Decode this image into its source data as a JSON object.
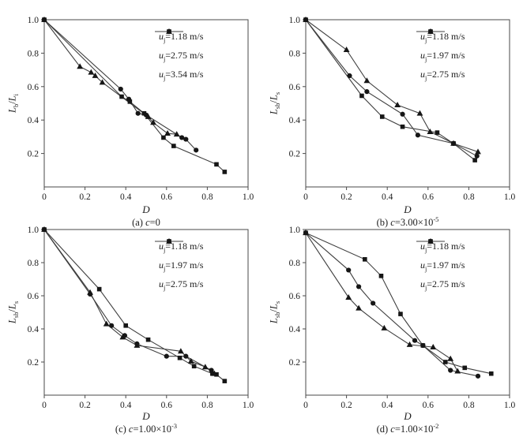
{
  "figure": {
    "background": "#ffffff",
    "line_color": "#3f3f3f",
    "marker_color": "#161616",
    "axis_color": "#4a4a4a",
    "text_color": "#1c1c1c"
  },
  "chart_data": [
    {
      "id": "a",
      "type": "line",
      "title": "(a) c=0",
      "xlabel": "D",
      "ylabel": "L_b/L_i",
      "xlim": [
        0,
        1.0
      ],
      "ylim": [
        0,
        1.0
      ],
      "x_ticks": [
        0,
        0.2,
        0.4,
        0.6,
        0.8,
        1.0
      ],
      "y_ticks": [
        0.2,
        0.4,
        0.6,
        0.8,
        1.0
      ],
      "grid": false,
      "legend_position": "upper right",
      "series": [
        {
          "name": "u_j=1.18 m/s",
          "marker": "square",
          "points": [
            [
              0,
              1.0
            ],
            [
              0.38,
              0.54
            ],
            [
              0.42,
              0.51
            ],
            [
              0.49,
              0.44
            ],
            [
              0.585,
              0.295
            ],
            [
              0.635,
              0.245
            ],
            [
              0.845,
              0.135
            ],
            [
              0.885,
              0.09
            ]
          ]
        },
        {
          "name": "u_j=2.75 m/s",
          "marker": "circle",
          "points": [
            [
              0,
              1.0
            ],
            [
              0.375,
              0.585
            ],
            [
              0.415,
              0.525
            ],
            [
              0.46,
              0.44
            ],
            [
              0.5,
              0.43
            ],
            [
              0.675,
              0.295
            ],
            [
              0.695,
              0.285
            ],
            [
              0.745,
              0.22
            ]
          ]
        },
        {
          "name": "u_j=3.54 m/s",
          "marker": "triangle",
          "points": [
            [
              0,
              1.0
            ],
            [
              0.175,
              0.72
            ],
            [
              0.23,
              0.685
            ],
            [
              0.25,
              0.665
            ],
            [
              0.285,
              0.625
            ],
            [
              0.51,
              0.42
            ],
            [
              0.535,
              0.385
            ],
            [
              0.605,
              0.32
            ],
            [
              0.65,
              0.315
            ]
          ]
        }
      ]
    },
    {
      "id": "b",
      "type": "line",
      "title": "(b) c=3.00×10^-5",
      "xlabel": "D",
      "ylabel": "L_sb/L_s",
      "xlim": [
        0,
        1.0
      ],
      "ylim": [
        0,
        1.0
      ],
      "x_ticks": [
        0,
        0.2,
        0.4,
        0.6,
        0.8,
        1.0
      ],
      "y_ticks": [
        0.2,
        0.4,
        0.6,
        0.8,
        1.0
      ],
      "grid": false,
      "legend_position": "upper right",
      "series": [
        {
          "name": "u_j=1.18 m/s",
          "marker": "square",
          "points": [
            [
              0,
              1.0
            ],
            [
              0.275,
              0.545
            ],
            [
              0.375,
              0.42
            ],
            [
              0.475,
              0.36
            ],
            [
              0.645,
              0.325
            ],
            [
              0.725,
              0.26
            ],
            [
              0.83,
              0.16
            ]
          ]
        },
        {
          "name": "u_j=1.97 m/s",
          "marker": "circle",
          "points": [
            [
              0,
              1.0
            ],
            [
              0.215,
              0.665
            ],
            [
              0.3,
              0.57
            ],
            [
              0.475,
              0.435
            ],
            [
              0.55,
              0.31
            ],
            [
              0.725,
              0.26
            ],
            [
              0.84,
              0.185
            ]
          ]
        },
        {
          "name": "u_j=2.75 m/s",
          "marker": "triangle",
          "points": [
            [
              0,
              1.0
            ],
            [
              0.2,
              0.82
            ],
            [
              0.3,
              0.635
            ],
            [
              0.45,
              0.49
            ],
            [
              0.56,
              0.44
            ],
            [
              0.61,
              0.33
            ],
            [
              0.725,
              0.26
            ],
            [
              0.845,
              0.21
            ]
          ]
        }
      ]
    },
    {
      "id": "c",
      "type": "line",
      "title": "(c) c=1.00×10^-3",
      "xlabel": "D",
      "ylabel": "L_sb/L_s",
      "xlim": [
        0,
        1.0
      ],
      "ylim": [
        0,
        1.0
      ],
      "x_ticks": [
        0,
        0.2,
        0.4,
        0.6,
        0.8,
        1.0
      ],
      "y_ticks": [
        0.2,
        0.4,
        0.6,
        0.8,
        1.0
      ],
      "grid": false,
      "legend_position": "upper right",
      "series": [
        {
          "name": "u_j=1.18 m/s",
          "marker": "square",
          "points": [
            [
              0,
              1.0
            ],
            [
              0.27,
              0.64
            ],
            [
              0.4,
              0.42
            ],
            [
              0.51,
              0.335
            ],
            [
              0.665,
              0.225
            ],
            [
              0.735,
              0.175
            ],
            [
              0.825,
              0.13
            ],
            [
              0.845,
              0.125
            ],
            [
              0.885,
              0.085
            ]
          ]
        },
        {
          "name": "u_j=1.97 m/s",
          "marker": "circle",
          "points": [
            [
              0,
              1.0
            ],
            [
              0.225,
              0.61
            ],
            [
              0.33,
              0.42
            ],
            [
              0.395,
              0.36
            ],
            [
              0.455,
              0.31
            ],
            [
              0.6,
              0.235
            ],
            [
              0.695,
              0.235
            ],
            [
              0.82,
              0.15
            ]
          ]
        },
        {
          "name": "u_j=2.75 m/s",
          "marker": "triangle",
          "points": [
            [
              0,
              1.0
            ],
            [
              0.225,
              0.62
            ],
            [
              0.305,
              0.43
            ],
            [
              0.385,
              0.35
            ],
            [
              0.455,
              0.3
            ],
            [
              0.67,
              0.265
            ],
            [
              0.72,
              0.205
            ],
            [
              0.79,
              0.17
            ],
            [
              0.835,
              0.13
            ]
          ]
        }
      ]
    },
    {
      "id": "d",
      "type": "line",
      "title": "(d) c=1.00×10^-2",
      "xlabel": "D",
      "ylabel": "L_sb/L_s",
      "xlim": [
        0,
        1.0
      ],
      "ylim": [
        0,
        1.0
      ],
      "x_ticks": [
        0,
        0.2,
        0.4,
        0.6,
        0.8,
        1.0
      ],
      "y_ticks": [
        0.2,
        0.4,
        0.6,
        0.8,
        1.0
      ],
      "grid": false,
      "legend_position": "upper right",
      "series": [
        {
          "name": "u_j=1.18 m/s",
          "marker": "square",
          "points": [
            [
              0,
              0.98
            ],
            [
              0.29,
              0.82
            ],
            [
              0.37,
              0.72
            ],
            [
              0.465,
              0.49
            ],
            [
              0.575,
              0.3
            ],
            [
              0.685,
              0.2
            ],
            [
              0.78,
              0.165
            ],
            [
              0.91,
              0.13
            ]
          ]
        },
        {
          "name": "u_j=1.97 m/s",
          "marker": "circle",
          "points": [
            [
              0,
              0.98
            ],
            [
              0.21,
              0.755
            ],
            [
              0.26,
              0.655
            ],
            [
              0.33,
              0.555
            ],
            [
              0.535,
              0.33
            ],
            [
              0.575,
              0.3
            ],
            [
              0.71,
              0.15
            ],
            [
              0.845,
              0.115
            ]
          ]
        },
        {
          "name": "u_j=2.75 m/s",
          "marker": "triangle",
          "points": [
            [
              0,
              0.98
            ],
            [
              0.21,
              0.59
            ],
            [
              0.26,
              0.525
            ],
            [
              0.385,
              0.405
            ],
            [
              0.51,
              0.305
            ],
            [
              0.625,
              0.29
            ],
            [
              0.71,
              0.22
            ],
            [
              0.745,
              0.145
            ]
          ]
        }
      ]
    }
  ]
}
